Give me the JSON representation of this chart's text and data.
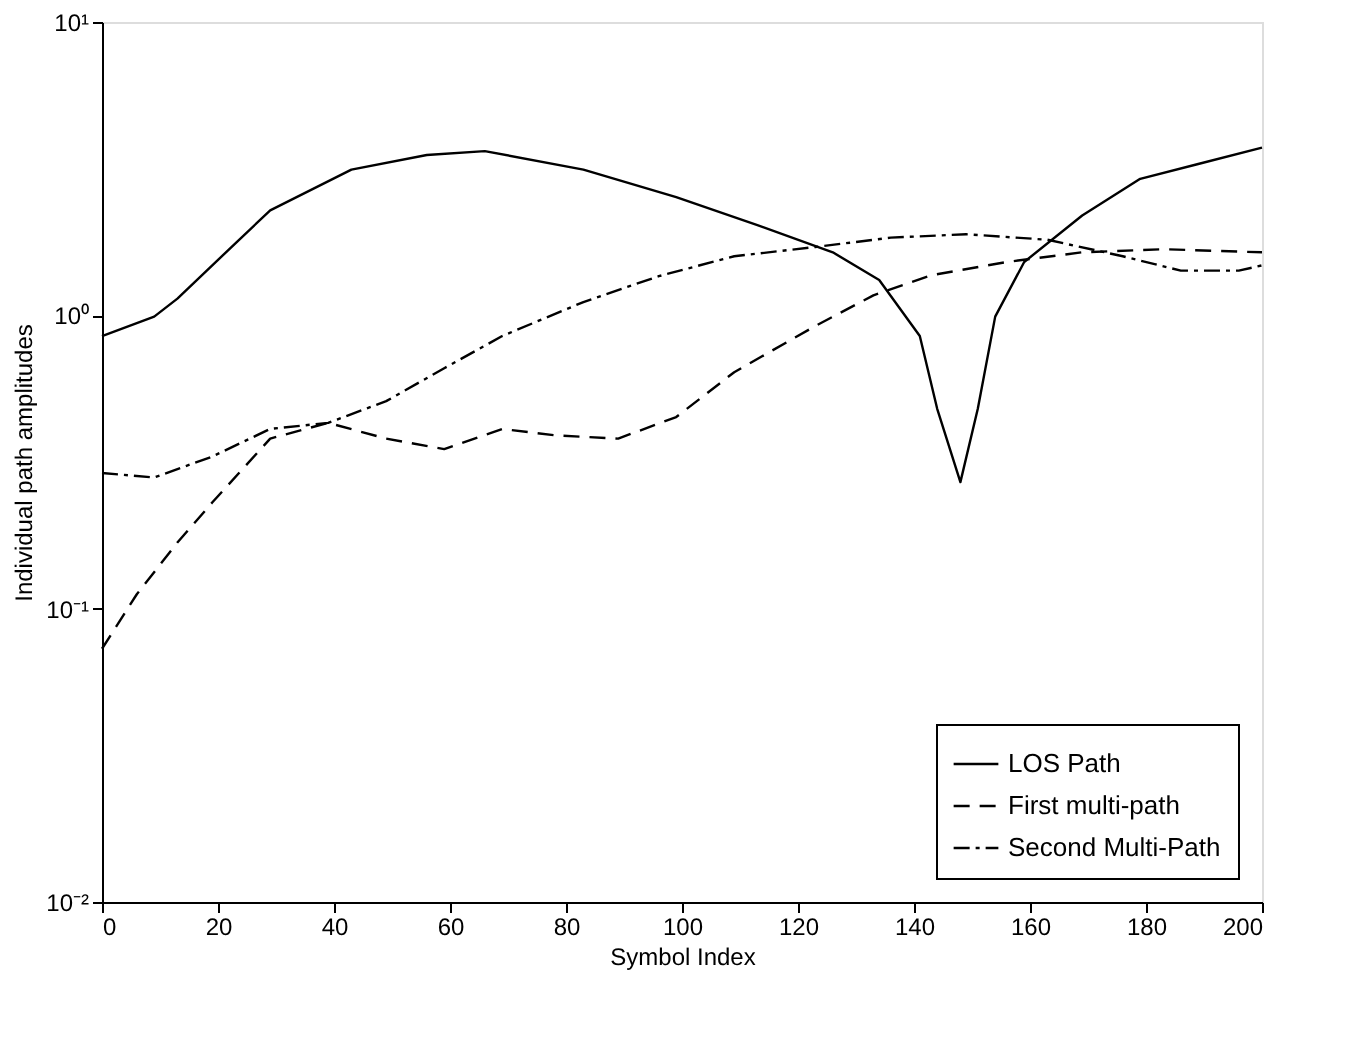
{
  "chart_data": {
    "type": "line",
    "xlabel": "Symbol Index",
    "ylabel": "Individual path amplitudes",
    "xlim": [
      0,
      200
    ],
    "xticks": [
      0,
      20,
      40,
      60,
      80,
      100,
      120,
      140,
      160,
      180,
      200
    ],
    "ylim": [
      0.01,
      10
    ],
    "yticks": [
      {
        "value": 0.01,
        "label": "10⁻²"
      },
      {
        "value": 0.1,
        "label": "10⁻¹"
      },
      {
        "value": 1,
        "label": "10⁰"
      },
      {
        "value": 10,
        "label": "10¹"
      }
    ],
    "log": true,
    "grid": false,
    "legend": "bottom right",
    "marker": "none",
    "series": [
      {
        "name": "LOS Path",
        "color": "#000000",
        "line_style": "solid",
        "x": [
          0,
          9,
          13,
          23,
          29,
          43,
          56,
          66,
          83,
          99,
          113,
          126,
          134,
          141,
          144,
          148,
          151,
          154,
          159,
          169,
          179,
          189,
          200
        ],
        "values": [
          0.85,
          0.99,
          1.14,
          1.76,
          2.28,
          3.14,
          3.52,
          3.63,
          3.14,
          2.53,
          2.03,
          1.64,
          1.32,
          0.85,
          0.48,
          0.27,
          0.48,
          0.99,
          1.52,
          2.19,
          2.92,
          3.28,
          3.73
        ]
      },
      {
        "name": "First multi-path",
        "color": "#000000",
        "line_style": "dashed",
        "x": [
          0,
          6,
          13,
          19,
          29,
          39,
          49,
          59,
          69,
          78,
          89,
          99,
          109,
          123,
          133,
          143,
          156,
          169,
          183,
          200
        ],
        "values": [
          0.073,
          0.112,
          0.168,
          0.23,
          0.38,
          0.43,
          0.38,
          0.35,
          0.41,
          0.39,
          0.38,
          0.45,
          0.64,
          0.92,
          1.17,
          1.37,
          1.52,
          1.64,
          1.68,
          1.64
        ]
      },
      {
        "name": "Second Multi-Path",
        "color": "#000000",
        "line_style": "dashdot",
        "x": [
          0,
          9,
          19,
          29,
          39,
          49,
          59,
          69,
          83,
          96,
          109,
          123,
          136,
          149,
          163,
          176,
          186,
          196,
          200
        ],
        "values": [
          0.29,
          0.28,
          0.33,
          0.41,
          0.43,
          0.51,
          0.66,
          0.85,
          1.11,
          1.36,
          1.59,
          1.71,
          1.84,
          1.89,
          1.81,
          1.59,
          1.42,
          1.42,
          1.48
        ]
      }
    ]
  }
}
